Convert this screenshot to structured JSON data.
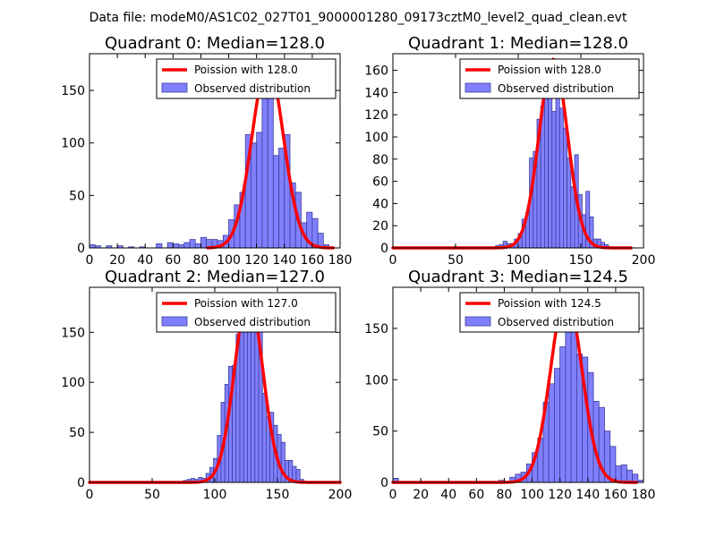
{
  "figure": {
    "suptitle": "Data file: modeM0/AS1C02_027T01_9000001280_09173cztM0_level2_quad_clean.evt"
  },
  "chart_data": [
    {
      "type": "histogram+line",
      "title": "Quadrant 0: Median=128.0",
      "xlim": [
        0,
        180
      ],
      "ylim": [
        0,
        185
      ],
      "xticks": [
        0,
        20,
        40,
        60,
        80,
        100,
        120,
        140,
        160,
        180
      ],
      "yticks": [
        0,
        50,
        100,
        150
      ],
      "xlabel": "",
      "ylabel": "",
      "legend": [
        "Poission with 128.0",
        "Observed distribution"
      ],
      "line_label": "Poission with 128.0",
      "hist_label": "Observed distribution",
      "median": 128.0,
      "line_peak": 175,
      "line_range": [
        85,
        175
      ],
      "bins": [
        [
          0,
          4,
          3
        ],
        [
          4,
          8,
          2
        ],
        [
          12,
          16,
          2
        ],
        [
          20,
          24,
          2
        ],
        [
          28,
          32,
          1
        ],
        [
          36,
          40,
          1
        ],
        [
          48,
          52,
          4
        ],
        [
          56,
          60,
          5
        ],
        [
          60,
          64,
          4
        ],
        [
          64,
          68,
          3
        ],
        [
          68,
          72,
          5
        ],
        [
          72,
          76,
          8
        ],
        [
          76,
          80,
          4
        ],
        [
          80,
          84,
          10
        ],
        [
          84,
          88,
          8
        ],
        [
          88,
          92,
          8
        ],
        [
          92,
          96,
          7
        ],
        [
          96,
          100,
          12
        ],
        [
          100,
          104,
          27
        ],
        [
          104,
          108,
          41
        ],
        [
          108,
          112,
          53
        ],
        [
          112,
          116,
          108
        ],
        [
          116,
          120,
          100
        ],
        [
          120,
          124,
          110
        ],
        [
          124,
          128,
          143
        ],
        [
          128,
          132,
          147
        ],
        [
          132,
          136,
          88
        ],
        [
          136,
          140,
          95
        ],
        [
          140,
          144,
          108
        ],
        [
          144,
          148,
          62
        ],
        [
          148,
          152,
          53
        ],
        [
          152,
          156,
          24
        ],
        [
          156,
          160,
          34
        ],
        [
          160,
          164,
          28
        ],
        [
          164,
          168,
          14
        ],
        [
          168,
          172,
          3
        ]
      ]
    },
    {
      "type": "histogram+line",
      "title": "Quadrant 1: Median=128.0",
      "xlim": [
        0,
        200
      ],
      "ylim": [
        0,
        175
      ],
      "xticks": [
        0,
        50,
        100,
        150,
        200
      ],
      "yticks": [
        0,
        20,
        40,
        60,
        80,
        100,
        120,
        140,
        160
      ],
      "xlabel": "",
      "ylabel": "",
      "legend": [
        "Poission with 128.0",
        "Observed distribution"
      ],
      "line_label": "Poission with 128.0",
      "hist_label": "Observed distribution",
      "median": 128.0,
      "line_peak": 170,
      "line_range": [
        0,
        190
      ],
      "bins": [
        [
          82,
          85,
          2
        ],
        [
          85,
          88,
          3
        ],
        [
          88,
          91,
          6
        ],
        [
          91,
          94,
          4
        ],
        [
          94,
          97,
          4
        ],
        [
          97,
          100,
          8
        ],
        [
          100,
          103,
          13
        ],
        [
          103,
          106,
          26
        ],
        [
          106,
          109,
          32
        ],
        [
          109,
          112,
          81
        ],
        [
          112,
          115,
          87
        ],
        [
          115,
          118,
          116
        ],
        [
          118,
          121,
          128
        ],
        [
          121,
          124,
          158
        ],
        [
          124,
          127,
          168
        ],
        [
          127,
          130,
          123
        ],
        [
          130,
          133,
          160
        ],
        [
          133,
          136,
          126
        ],
        [
          136,
          139,
          108
        ],
        [
          139,
          142,
          81
        ],
        [
          142,
          145,
          55
        ],
        [
          145,
          148,
          84
        ],
        [
          148,
          151,
          48
        ],
        [
          151,
          154,
          30
        ],
        [
          154,
          157,
          51
        ],
        [
          157,
          160,
          28
        ],
        [
          160,
          163,
          8
        ],
        [
          163,
          166,
          8
        ],
        [
          166,
          169,
          5
        ],
        [
          169,
          172,
          3
        ]
      ]
    },
    {
      "type": "histogram+line",
      "title": "Quadrant 2: Median=127.0",
      "xlim": [
        0,
        200
      ],
      "ylim": [
        0,
        195
      ],
      "xticks": [
        0,
        50,
        100,
        150,
        200
      ],
      "yticks": [
        0,
        50,
        100,
        150
      ],
      "xlabel": "",
      "ylabel": "",
      "legend": [
        "Poission with 127.0",
        "Observed distribution"
      ],
      "line_label": "Poission with 127.0",
      "hist_label": "Observed distribution",
      "median": 127.0,
      "line_peak": 187,
      "line_range": [
        0,
        200
      ],
      "bins": [
        [
          75,
          78,
          2
        ],
        [
          78,
          81,
          3
        ],
        [
          81,
          84,
          4
        ],
        [
          84,
          87,
          3
        ],
        [
          87,
          90,
          5
        ],
        [
          90,
          93,
          4
        ],
        [
          93,
          96,
          9
        ],
        [
          96,
          99,
          15
        ],
        [
          99,
          102,
          24
        ],
        [
          102,
          105,
          47
        ],
        [
          105,
          108,
          80
        ],
        [
          108,
          111,
          98
        ],
        [
          111,
          114,
          116
        ],
        [
          114,
          117,
          117
        ],
        [
          117,
          120,
          148
        ],
        [
          120,
          123,
          157
        ],
        [
          123,
          126,
          184
        ],
        [
          126,
          129,
          176
        ],
        [
          129,
          132,
          172
        ],
        [
          132,
          135,
          165
        ],
        [
          135,
          138,
          154
        ],
        [
          138,
          141,
          89
        ],
        [
          141,
          144,
          66
        ],
        [
          144,
          147,
          70
        ],
        [
          147,
          150,
          57
        ],
        [
          150,
          153,
          48
        ],
        [
          153,
          156,
          40
        ],
        [
          156,
          159,
          22
        ],
        [
          159,
          162,
          22
        ],
        [
          162,
          165,
          16
        ],
        [
          165,
          168,
          13
        ],
        [
          168,
          171,
          3
        ]
      ]
    },
    {
      "type": "histogram+line",
      "title": "Quadrant 3: Median=124.5",
      "xlim": [
        0,
        180
      ],
      "ylim": [
        0,
        190
      ],
      "xticks": [
        0,
        20,
        40,
        60,
        80,
        100,
        120,
        140,
        160,
        180
      ],
      "yticks": [
        0,
        50,
        100,
        150
      ],
      "xlabel": "",
      "ylabel": "",
      "legend": [
        "Poission with 124.5",
        "Observed distribution"
      ],
      "line_label": "Poission with 124.5",
      "hist_label": "Observed distribution",
      "median": 124.5,
      "line_peak": 183,
      "line_range": [
        0,
        175
      ],
      "bins": [
        [
          0,
          4,
          4
        ],
        [
          76,
          80,
          2
        ],
        [
          84,
          88,
          5
        ],
        [
          88,
          92,
          8
        ],
        [
          92,
          96,
          10
        ],
        [
          96,
          100,
          18
        ],
        [
          100,
          104,
          29
        ],
        [
          104,
          108,
          43
        ],
        [
          108,
          112,
          78
        ],
        [
          112,
          116,
          96
        ],
        [
          116,
          120,
          111
        ],
        [
          120,
          124,
          132
        ],
        [
          124,
          128,
          158
        ],
        [
          128,
          132,
          156
        ],
        [
          132,
          136,
          125
        ],
        [
          136,
          140,
          122
        ],
        [
          140,
          144,
          107
        ],
        [
          144,
          148,
          79
        ],
        [
          148,
          152,
          73
        ],
        [
          152,
          156,
          50
        ],
        [
          156,
          160,
          35
        ],
        [
          160,
          164,
          16
        ],
        [
          164,
          168,
          17
        ],
        [
          168,
          172,
          12
        ],
        [
          172,
          176,
          8
        ],
        [
          176,
          180,
          2
        ]
      ]
    }
  ],
  "colors": {
    "hist_fill": "#8080ff",
    "hist_edge": "#3c3c9c",
    "line": "#ff0000",
    "axes": "#000000",
    "background": "#ffffff"
  }
}
